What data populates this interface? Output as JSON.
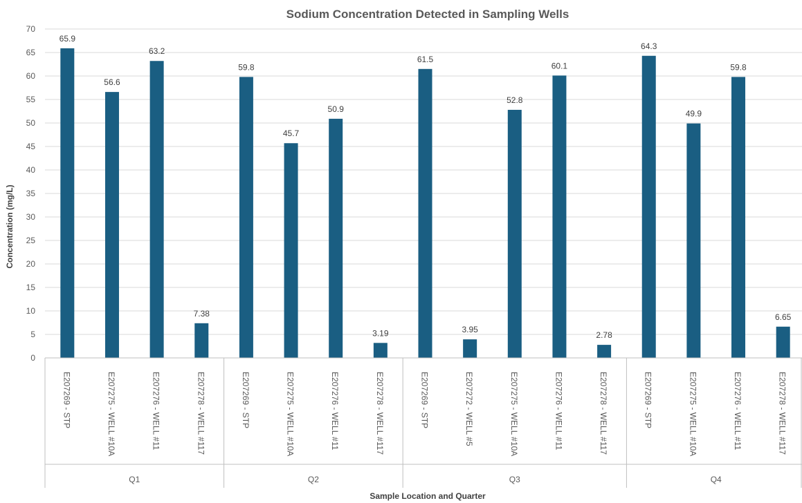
{
  "chart_data": {
    "type": "bar",
    "title": "Sodium Concentration Detected in Sampling Wells",
    "xlabel": "Sample Location and Quarter",
    "ylabel": "Concentration (mg/L)",
    "ylim": [
      0,
      70
    ],
    "y_ticks": [
      0,
      5,
      10,
      15,
      20,
      25,
      30,
      35,
      40,
      45,
      50,
      55,
      60,
      65,
      70
    ],
    "grid": true,
    "bar_color": "#1a5e82",
    "groups": [
      {
        "name": "Q1",
        "categories": [
          "E207269 - STP",
          "E207275 - WELL #10A",
          "E207276 - WELL #11",
          "E207278 - WELL #117"
        ],
        "values": [
          65.9,
          56.6,
          63.2,
          7.38
        ],
        "labels": [
          "65.9",
          "56.6",
          "63.2",
          "7.38"
        ]
      },
      {
        "name": "Q2",
        "categories": [
          "E207269 - STP",
          "E207275 - WELL #10A",
          "E207276 - WELL #11",
          "E207278 - WELL #117"
        ],
        "values": [
          59.8,
          45.7,
          50.9,
          3.19
        ],
        "labels": [
          "59.8",
          "45.7",
          "50.9",
          "3.19"
        ]
      },
      {
        "name": "Q3",
        "categories": [
          "E207269 - STP",
          "E207272 - WELL #5",
          "E207275 - WELL #10A",
          "E207276 - WELL #11",
          "E207278 - WELL #117"
        ],
        "values": [
          61.5,
          3.95,
          52.8,
          60.1,
          2.78
        ],
        "labels": [
          "61.5",
          "3.95",
          "52.8",
          "60.1",
          "2.78"
        ]
      },
      {
        "name": "Q4",
        "categories": [
          "E207269 - STP",
          "E207275 - WELL #10A",
          "E207276 - WELL #11",
          "E207278 - WELL #117"
        ],
        "values": [
          64.3,
          49.9,
          59.8,
          6.65
        ],
        "labels": [
          "64.3",
          "49.9",
          "59.8",
          "6.65"
        ]
      }
    ]
  }
}
